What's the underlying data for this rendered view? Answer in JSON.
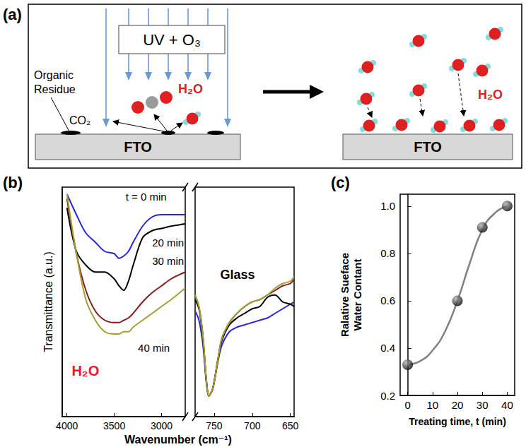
{
  "panel_a": {
    "label": "(a)",
    "treatment": "UV + O₃",
    "residue": "Organic Residue",
    "products": [
      "CO₂",
      "H₂O"
    ],
    "substrate": "FTO",
    "adsorbate": "H₂O"
  },
  "chart_data": [
    {
      "panel": "(b)",
      "type": "line",
      "x_label": "Wavenumber (cm⁻¹)",
      "y_label": "Transmittance (a.u.)",
      "tick_labels": "x",
      "x_segments": [
        {
          "xlim": [
            4050,
            2750
          ],
          "xticks": [
            4000,
            3500,
            3000
          ]
        },
        {
          "xlim": [
            775,
            645
          ],
          "xticks": [
            750,
            700,
            650
          ]
        }
      ],
      "ylim": [
        0,
        100
      ],
      "series": [
        {
          "name": "t = 0 min",
          "color": "#2626e0",
          "x": [
            4000,
            3900,
            3800,
            3700,
            3600,
            3500,
            3450,
            3400,
            3350,
            3300,
            3200,
            3100,
            3000,
            2900,
            2750,
            775,
            770,
            765,
            760,
            757,
            752,
            745,
            740,
            730,
            720,
            710,
            700,
            690,
            680,
            670,
            660,
            650,
            645
          ],
          "values": [
            97,
            88,
            80,
            76,
            72,
            71,
            69,
            70,
            72,
            76,
            83,
            87,
            88,
            88,
            88,
            46,
            42,
            32,
            14,
            9,
            12,
            24,
            31,
            37,
            39,
            40,
            41,
            42,
            43,
            45,
            47,
            49,
            50
          ]
        },
        {
          "name": "20 min",
          "color": "#000000",
          "x": [
            4000,
            3900,
            3800,
            3700,
            3600,
            3500,
            3450,
            3400,
            3350,
            3300,
            3200,
            3100,
            3000,
            2900,
            2750,
            775,
            770,
            765,
            760,
            757,
            752,
            745,
            740,
            730,
            720,
            710,
            700,
            690,
            680,
            670,
            660,
            650,
            645
          ],
          "values": [
            91,
            72,
            66,
            63,
            63,
            60,
            57,
            55,
            59,
            66,
            78,
            81,
            82,
            83,
            84,
            51,
            47,
            35,
            15,
            9,
            12,
            25,
            33,
            40,
            43,
            45,
            47,
            48,
            52,
            53,
            50,
            49,
            48
          ]
        },
        {
          "name": "30 min",
          "color": "#8b1c1c",
          "x": [
            4000,
            3900,
            3800,
            3700,
            3600,
            3500,
            3450,
            3400,
            3350,
            3300,
            3200,
            3100,
            3000,
            2900,
            2750,
            775,
            770,
            765,
            760,
            757,
            752,
            745,
            740,
            730,
            720,
            710,
            700,
            690,
            680,
            670,
            660,
            650,
            645
          ],
          "values": [
            95,
            71,
            55,
            46,
            42,
            41,
            41,
            42,
            43,
            45,
            50,
            54,
            57,
            60,
            63,
            53,
            48,
            36,
            15,
            9,
            12,
            25,
            34,
            41,
            45,
            48,
            50,
            51,
            53,
            55,
            57,
            58,
            60
          ]
        },
        {
          "name": "40 min",
          "color": "#a2a234",
          "x": [
            4000,
            3900,
            3800,
            3700,
            3600,
            3500,
            3450,
            3400,
            3350,
            3300,
            3200,
            3100,
            3000,
            2900,
            2750,
            775,
            770,
            765,
            760,
            757,
            752,
            745,
            740,
            730,
            720,
            710,
            700,
            690,
            680,
            670,
            660,
            650,
            645
          ],
          "values": [
            97,
            71,
            51,
            42,
            37,
            36,
            36,
            37,
            37,
            39,
            42,
            45,
            48,
            51,
            56,
            53,
            48,
            36,
            15,
            9,
            12,
            25,
            34,
            41,
            45,
            48,
            50,
            51,
            53,
            56,
            58,
            59,
            61
          ]
        }
      ],
      "annotations": [
        {
          "text": "H₂O",
          "color": "#e8192c"
        },
        {
          "text": "Glass",
          "color": "#000000"
        }
      ]
    },
    {
      "panel": "(c)",
      "type": "scatter",
      "x_label": "Treating time, t (min)",
      "y_label": "Ralative Sueface Water Contant",
      "xlim": [
        -3,
        43
      ],
      "xticks": [
        0,
        10,
        20,
        30,
        40
      ],
      "ylim": [
        0.2,
        1.05
      ],
      "yticks": [
        0.2,
        0.4,
        0.6,
        0.8,
        {
          "value": 1,
          "label": "1.0"
        }
      ],
      "series": [
        {
          "type": "line",
          "color": "#808080",
          "x": [
            0,
            5,
            10,
            15,
            20,
            25,
            30,
            35,
            40
          ],
          "values": [
            0.33,
            0.345,
            0.39,
            0.47,
            0.6,
            0.76,
            0.9,
            0.97,
            1.0
          ]
        },
        {
          "type": "scatter",
          "color": "#000000",
          "marker": "circle",
          "x": [
            0,
            20,
            30,
            40
          ],
          "values": [
            0.33,
            0.6,
            0.91,
            1.0
          ]
        }
      ]
    }
  ]
}
